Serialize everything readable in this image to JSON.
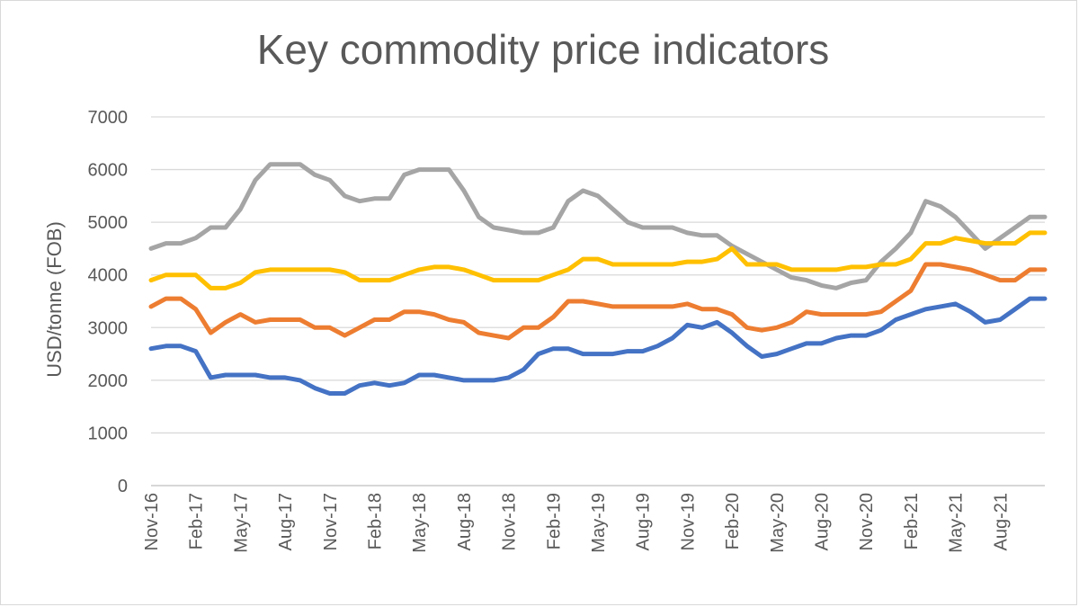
{
  "chart_data": {
    "type": "line",
    "title": "Key commodity price indicators",
    "xlabel": "",
    "ylabel": "USD/tonne (FOB)",
    "ylim": [
      0,
      7000
    ],
    "yticks": [
      0,
      1000,
      2000,
      3000,
      4000,
      5000,
      6000,
      7000
    ],
    "grid": true,
    "legend": "none",
    "x": [
      "Nov-16",
      "Dec-16",
      "Jan-17",
      "Feb-17",
      "Mar-17",
      "Apr-17",
      "May-17",
      "Jun-17",
      "Jul-17",
      "Aug-17",
      "Sep-17",
      "Oct-17",
      "Nov-17",
      "Dec-17",
      "Jan-18",
      "Feb-18",
      "Mar-18",
      "Apr-18",
      "May-18",
      "Jun-18",
      "Jul-18",
      "Aug-18",
      "Sep-18",
      "Oct-18",
      "Nov-18",
      "Dec-18",
      "Jan-19",
      "Feb-19",
      "Mar-19",
      "Apr-19",
      "May-19",
      "Jun-19",
      "Jul-19",
      "Aug-19",
      "Sep-19",
      "Oct-19",
      "Nov-19",
      "Dec-19",
      "Jan-20",
      "Feb-20",
      "Mar-20",
      "Apr-20",
      "May-20",
      "Jun-20",
      "Jul-20",
      "Aug-20",
      "Sep-20",
      "Oct-20",
      "Nov-20",
      "Dec-20",
      "Jan-21",
      "Feb-21",
      "Mar-21",
      "Apr-21",
      "May-21",
      "Jun-21",
      "Jul-21",
      "Aug-21",
      "Sep-21",
      "Oct-21",
      "Nov-21"
    ],
    "xtick_labels": [
      "Nov-16",
      "Feb-17",
      "May-17",
      "Aug-17",
      "Nov-17",
      "Feb-18",
      "May-18",
      "Aug-18",
      "Nov-18",
      "Feb-19",
      "May-19",
      "Aug-19",
      "Nov-19",
      "Feb-20",
      "May-20",
      "Aug-20",
      "Nov-20",
      "Feb-21",
      "May-21",
      "Aug-21"
    ],
    "series": [
      {
        "color": "#a5a5a5",
        "values": [
          4500,
          4600,
          4600,
          4700,
          4900,
          4900,
          5250,
          5800,
          6100,
          6100,
          6100,
          5900,
          5800,
          5500,
          5400,
          5450,
          5450,
          5900,
          6000,
          6000,
          6000,
          5600,
          5100,
          4900,
          4850,
          4800,
          4800,
          4900,
          5400,
          5600,
          5500,
          5250,
          5000,
          4900,
          4900,
          4900,
          4800,
          4750,
          4750,
          4550,
          4400,
          4250,
          4100,
          3950,
          3900,
          3800,
          3750,
          3850,
          3900,
          4250,
          4500,
          4800,
          5400,
          5300,
          5100,
          4800,
          4500,
          4700,
          4900,
          5100,
          5100
        ]
      },
      {
        "color": "#ffc000",
        "values": [
          3900,
          4000,
          4000,
          4000,
          3750,
          3750,
          3850,
          4050,
          4100,
          4100,
          4100,
          4100,
          4100,
          4050,
          3900,
          3900,
          3900,
          4000,
          4100,
          4150,
          4150,
          4100,
          4000,
          3900,
          3900,
          3900,
          3900,
          4000,
          4100,
          4300,
          4300,
          4200,
          4200,
          4200,
          4200,
          4200,
          4250,
          4250,
          4300,
          4500,
          4200,
          4200,
          4200,
          4100,
          4100,
          4100,
          4100,
          4150,
          4150,
          4200,
          4200,
          4300,
          4600,
          4600,
          4700,
          4650,
          4600,
          4600,
          4600,
          4800,
          4800
        ]
      },
      {
        "color": "#ed7d31",
        "values": [
          3400,
          3550,
          3550,
          3350,
          2900,
          3100,
          3250,
          3100,
          3150,
          3150,
          3150,
          3000,
          3000,
          2850,
          3000,
          3150,
          3150,
          3300,
          3300,
          3250,
          3150,
          3100,
          2900,
          2850,
          2800,
          3000,
          3000,
          3200,
          3500,
          3500,
          3450,
          3400,
          3400,
          3400,
          3400,
          3400,
          3450,
          3350,
          3350,
          3250,
          3000,
          2950,
          3000,
          3100,
          3300,
          3250,
          3250,
          3250,
          3250,
          3300,
          3500,
          3700,
          4200,
          4200,
          4150,
          4100,
          4000,
          3900,
          3900,
          4100,
          4100
        ]
      },
      {
        "color": "#4472c4",
        "values": [
          2600,
          2650,
          2650,
          2550,
          2050,
          2100,
          2100,
          2100,
          2050,
          2050,
          2000,
          1850,
          1750,
          1750,
          1900,
          1950,
          1900,
          1950,
          2100,
          2100,
          2050,
          2000,
          2000,
          2000,
          2050,
          2200,
          2500,
          2600,
          2600,
          2500,
          2500,
          2500,
          2550,
          2550,
          2650,
          2800,
          3050,
          3000,
          3100,
          2900,
          2650,
          2450,
          2500,
          2600,
          2700,
          2700,
          2800,
          2850,
          2850,
          2950,
          3150,
          3250,
          3350,
          3400,
          3450,
          3300,
          3100,
          3150,
          3350,
          3550,
          3550
        ]
      }
    ]
  }
}
